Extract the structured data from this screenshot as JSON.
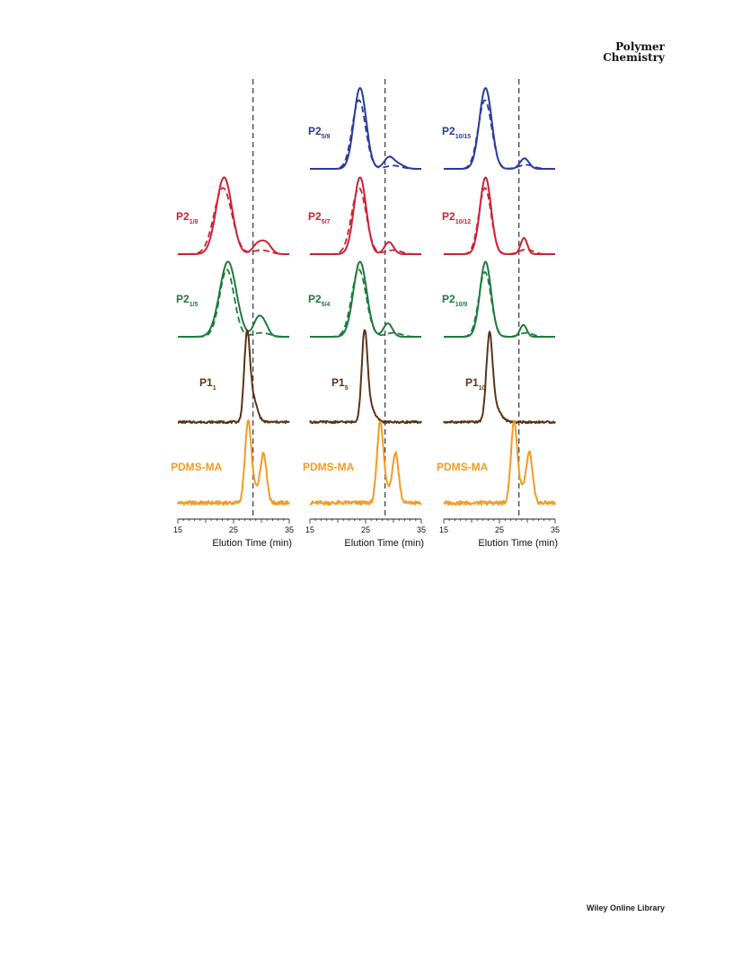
{
  "header": {
    "journal_line1": "Polymer",
    "journal_line2": "Chemistry"
  },
  "footer": {
    "publisher": "Wiley Online Library"
  },
  "chart_data": [
    {
      "type": "line",
      "xlabel": "Elution Time (min)",
      "xlim": [
        15,
        35
      ],
      "xticks": [
        15,
        25,
        35
      ],
      "reference_line_x": 28.5,
      "stacked_traces": [
        {
          "label": "P2",
          "sub": "1/8",
          "color": "#cc2233",
          "solid_peaks": [
            [
              23.3,
              0.95,
              1.4
            ],
            [
              29.3,
              0.12,
              0.9
            ],
            [
              30.9,
              0.13,
              0.9
            ]
          ],
          "dashed_peaks": [
            [
              23.1,
              0.82,
              1.6
            ],
            [
              30.0,
              0.05,
              1.5
            ]
          ]
        },
        {
          "label": "P2",
          "sub": "1/5",
          "color": "#1e7a3c",
          "solid_peaks": [
            [
              24.0,
              0.95,
              1.5
            ],
            [
              29.3,
              0.2,
              0.8
            ],
            [
              30.5,
              0.15,
              0.8
            ]
          ],
          "dashed_peaks": [
            [
              23.8,
              0.85,
              1.3
            ],
            [
              30.0,
              0.05,
              1.5
            ]
          ]
        },
        {
          "label": "P1",
          "sub": "1",
          "color": "#5a3418",
          "solid_peaks": [
            [
              27.4,
              1.0,
              0.5
            ],
            [
              28.4,
              0.3,
              0.8
            ]
          ],
          "dashed_peaks": []
        },
        {
          "label": "PDMS-MA",
          "sub": "",
          "color": "#f59a20",
          "solid_peaks": [
            [
              27.6,
              1.0,
              0.55
            ],
            [
              30.4,
              0.62,
              0.55
            ],
            [
              28.8,
              0.18,
              0.9
            ]
          ],
          "dashed_peaks": []
        }
      ]
    },
    {
      "type": "line",
      "xlabel": "Elution Time (min)",
      "xlim": [
        15,
        35
      ],
      "xticks": [
        15,
        25,
        35
      ],
      "reference_line_x": 28.5,
      "stacked_traces": [
        {
          "label": "P2",
          "sub": "5/9",
          "color": "#2a3b9a",
          "solid_peaks": [
            [
              24.0,
              1.0,
              1.1
            ],
            [
              29.2,
              0.14,
              0.9
            ],
            [
              31.0,
              0.05,
              1.0
            ]
          ],
          "dashed_peaks": [
            [
              23.8,
              0.85,
              1.2
            ],
            [
              30.0,
              0.04,
              1.4
            ]
          ]
        },
        {
          "label": "P2",
          "sub": "5/7",
          "color": "#cc2233",
          "solid_peaks": [
            [
              24.0,
              0.95,
              1.1
            ],
            [
              29.2,
              0.15,
              0.8
            ]
          ],
          "dashed_peaks": [
            [
              23.8,
              0.82,
              1.3
            ],
            [
              30.0,
              0.05,
              1.4
            ]
          ]
        },
        {
          "label": "P2",
          "sub": "5/4",
          "color": "#1e7a3c",
          "solid_peaks": [
            [
              24.0,
              0.95,
              1.2
            ],
            [
              29.0,
              0.17,
              0.8
            ]
          ],
          "dashed_peaks": [
            [
              23.8,
              0.85,
              1.3
            ],
            [
              30.0,
              0.05,
              1.4
            ]
          ]
        },
        {
          "label": "P1",
          "sub": "5",
          "color": "#5a3418",
          "solid_peaks": [
            [
              24.8,
              1.0,
              0.5
            ],
            [
              25.6,
              0.22,
              0.9
            ]
          ],
          "dashed_peaks": []
        },
        {
          "label": "PDMS-MA",
          "sub": "",
          "color": "#f59a20",
          "solid_peaks": [
            [
              27.6,
              1.0,
              0.55
            ],
            [
              30.4,
              0.62,
              0.55
            ],
            [
              28.8,
              0.18,
              0.9
            ]
          ],
          "dashed_peaks": []
        }
      ]
    },
    {
      "type": "line",
      "xlabel": "Elution Time (min)",
      "xlim": [
        15,
        35
      ],
      "xticks": [
        15,
        25,
        35
      ],
      "reference_line_x": 28.5,
      "stacked_traces": [
        {
          "label": "P2",
          "sub": "10/15",
          "color": "#2a3b9a",
          "solid_peaks": [
            [
              22.5,
              1.0,
              1.1
            ],
            [
              29.5,
              0.13,
              0.8
            ]
          ],
          "dashed_peaks": [
            [
              22.4,
              0.85,
              1.2
            ],
            [
              29.8,
              0.05,
              1.3
            ]
          ]
        },
        {
          "label": "P2",
          "sub": "10/12",
          "color": "#cc2233",
          "solid_peaks": [
            [
              22.5,
              0.95,
              1.0
            ],
            [
              29.4,
              0.2,
              0.6
            ]
          ],
          "dashed_peaks": [
            [
              22.4,
              0.82,
              1.1
            ],
            [
              29.8,
              0.06,
              1.2
            ]
          ]
        },
        {
          "label": "P2",
          "sub": "10/9",
          "color": "#1e7a3c",
          "solid_peaks": [
            [
              22.5,
              0.95,
              1.0
            ],
            [
              29.3,
              0.15,
              0.6
            ]
          ],
          "dashed_peaks": [
            [
              22.4,
              0.82,
              1.1
            ],
            [
              29.8,
              0.05,
              1.2
            ]
          ]
        },
        {
          "label": "P1",
          "sub": "10",
          "color": "#5a3418",
          "solid_peaks": [
            [
              23.2,
              1.0,
              0.55
            ],
            [
              24.2,
              0.18,
              1.0
            ]
          ],
          "dashed_peaks": []
        },
        {
          "label": "PDMS-MA",
          "sub": "",
          "color": "#f59a20",
          "solid_peaks": [
            [
              27.6,
              1.0,
              0.55
            ],
            [
              30.4,
              0.62,
              0.55
            ],
            [
              28.8,
              0.18,
              0.9
            ]
          ],
          "dashed_peaks": []
        }
      ]
    }
  ]
}
